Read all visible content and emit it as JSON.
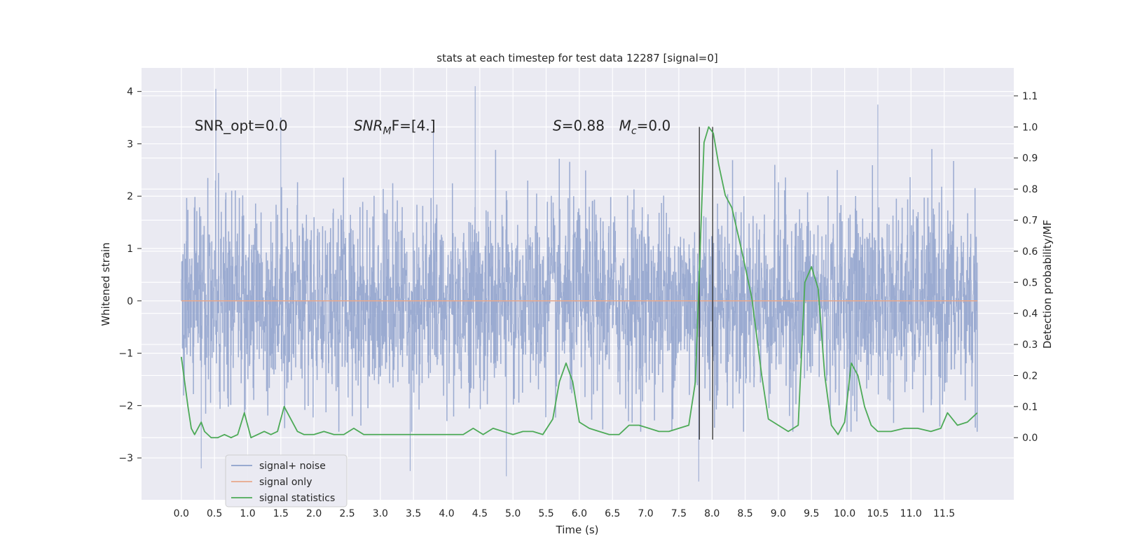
{
  "chart_data": {
    "type": "line",
    "title": "stats at each timestep for test data 12287 [signal=0]",
    "xlabel": "Time (s)",
    "ylabel_left": "Whitened strain",
    "ylabel_right": "Detection probability/MF",
    "xlim": [
      -0.6,
      12.55
    ],
    "ylim_left": [
      -3.8,
      4.45
    ],
    "ylim_right": [
      -0.2,
      1.19
    ],
    "x_ticks": [
      0.0,
      0.5,
      1.0,
      1.5,
      2.0,
      2.5,
      3.0,
      3.5,
      4.0,
      4.5,
      5.0,
      5.5,
      6.0,
      6.5,
      7.0,
      7.5,
      8.0,
      8.5,
      9.0,
      9.5,
      10.0,
      10.5,
      11.0,
      11.5
    ],
    "x_tick_labels": [
      "0.0",
      "0.5",
      "1.0",
      "1.5",
      "2.0",
      "2.5",
      "3.0",
      "3.5",
      "4.0",
      "4.5",
      "5.0",
      "5.5",
      "6.0",
      "6.5",
      "7.0",
      "7.5",
      "8.0",
      "8.5",
      "9.0",
      "9.5",
      "10.0",
      "10.5",
      "11.0",
      "11.5"
    ],
    "y_left_ticks": [
      -3,
      -2,
      -1,
      0,
      1,
      2,
      3,
      4
    ],
    "y_left_tick_labels": [
      "−3",
      "−2",
      "−1",
      "0",
      "1",
      "2",
      "3",
      "4"
    ],
    "y_right_ticks": [
      0.0,
      0.1,
      0.2,
      0.3,
      0.4,
      0.5,
      0.6,
      0.7,
      0.8,
      0.9,
      1.0,
      1.1
    ],
    "y_right_tick_labels": [
      "0.0",
      "0.1",
      "0.2",
      "0.3",
      "0.4",
      "0.5",
      "0.6",
      "0.7",
      "0.8",
      "0.9",
      "1.0",
      "1.1"
    ],
    "grid": true,
    "legend_position": "lower-left",
    "annotations": [
      {
        "text": "SNR_opt=0.0",
        "x": 0.2,
        "y": 3.35
      },
      {
        "text": "SNR",
        "sub": "M",
        "rest": "F=[4.]",
        "x": 2.6,
        "y": 3.35
      },
      {
        "text": "S",
        "rest": "=0.88",
        "x": 5.6,
        "y": 3.35
      },
      {
        "text": "M",
        "sub": "c",
        "rest": "=0.0",
        "x": 6.6,
        "y": 3.35
      }
    ],
    "vertical_lines": [
      7.81,
      8.01
    ],
    "series": [
      {
        "name": "signal+ noise",
        "color": "#8da0cb",
        "axis": "left",
        "x_range": [
          0.0,
          12.0
        ],
        "num_samples": 2600,
        "envelope_min": -3.4,
        "envelope_max": 4.1,
        "peaks": [
          [
            0.52,
            4.05
          ],
          [
            4.43,
            4.1
          ],
          [
            10.5,
            3.75
          ],
          [
            1.5,
            3.5
          ],
          [
            3.8,
            3.4
          ],
          [
            7.8,
            -3.45
          ],
          [
            4.9,
            -3.35
          ],
          [
            0.3,
            -3.2
          ],
          [
            3.45,
            -3.25
          ]
        ]
      },
      {
        "name": "signal only",
        "color": "#e8a88b",
        "axis": "left",
        "x": [
          0.0,
          12.0
        ],
        "y": [
          0.0,
          0.0
        ]
      },
      {
        "name": "signal statistics",
        "color": "#4daa57",
        "axis": "right",
        "x": [
          0.0,
          0.1,
          0.15,
          0.2,
          0.3,
          0.35,
          0.45,
          0.55,
          0.65,
          0.75,
          0.85,
          0.95,
          1.05,
          1.15,
          1.25,
          1.35,
          1.45,
          1.55,
          1.65,
          1.75,
          1.85,
          2.0,
          2.15,
          2.3,
          2.45,
          2.6,
          2.75,
          2.9,
          3.05,
          3.2,
          3.35,
          3.5,
          3.65,
          3.8,
          3.95,
          4.1,
          4.25,
          4.4,
          4.55,
          4.7,
          4.85,
          5.0,
          5.15,
          5.3,
          5.45,
          5.6,
          5.7,
          5.8,
          5.9,
          6.0,
          6.15,
          6.3,
          6.45,
          6.6,
          6.75,
          6.9,
          7.05,
          7.2,
          7.35,
          7.5,
          7.65,
          7.75,
          7.82,
          7.88,
          7.95,
          8.02,
          8.1,
          8.2,
          8.3,
          8.45,
          8.6,
          8.75,
          8.85,
          9.0,
          9.15,
          9.3,
          9.4,
          9.5,
          9.6,
          9.7,
          9.8,
          9.9,
          10.0,
          10.1,
          10.2,
          10.3,
          10.4,
          10.5,
          10.7,
          10.9,
          11.1,
          11.3,
          11.45,
          11.55,
          11.7,
          11.85,
          12.0
        ],
        "y": [
          0.26,
          0.1,
          0.03,
          0.01,
          0.05,
          0.02,
          0.0,
          0.0,
          0.01,
          0.0,
          0.01,
          0.08,
          0.0,
          0.01,
          0.02,
          0.01,
          0.02,
          0.1,
          0.06,
          0.02,
          0.01,
          0.01,
          0.02,
          0.01,
          0.01,
          0.03,
          0.01,
          0.01,
          0.01,
          0.01,
          0.01,
          0.01,
          0.01,
          0.01,
          0.01,
          0.01,
          0.01,
          0.03,
          0.01,
          0.03,
          0.02,
          0.01,
          0.02,
          0.02,
          0.01,
          0.06,
          0.18,
          0.24,
          0.18,
          0.05,
          0.03,
          0.02,
          0.01,
          0.01,
          0.04,
          0.04,
          0.03,
          0.02,
          0.02,
          0.03,
          0.04,
          0.18,
          0.6,
          0.95,
          1.0,
          0.98,
          0.88,
          0.78,
          0.74,
          0.6,
          0.45,
          0.2,
          0.06,
          0.04,
          0.02,
          0.04,
          0.5,
          0.55,
          0.48,
          0.2,
          0.04,
          0.01,
          0.05,
          0.24,
          0.2,
          0.1,
          0.04,
          0.02,
          0.02,
          0.03,
          0.03,
          0.02,
          0.03,
          0.08,
          0.04,
          0.05,
          0.08
        ]
      }
    ]
  }
}
